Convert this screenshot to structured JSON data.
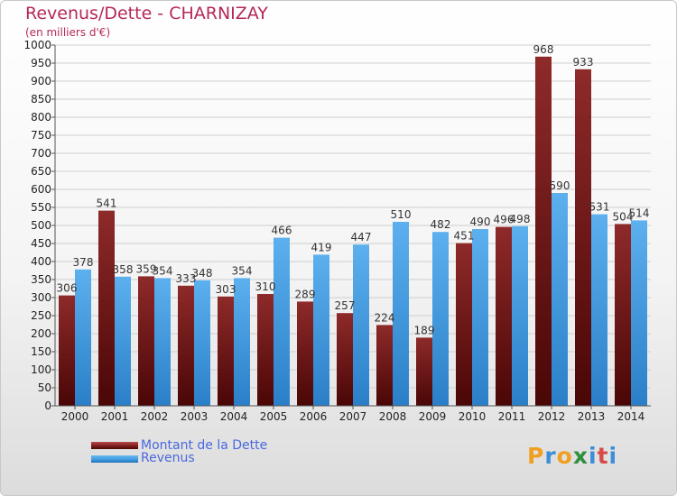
{
  "header": {
    "title": "Revenus/Dette - CHARNIZAY",
    "subtitle": "(en milliers d'€)"
  },
  "legend": {
    "debt_label": "Montant de la Dette",
    "revenue_label": "Revenus"
  },
  "logo": {
    "text": "Proxiti"
  },
  "colors": {
    "debt": "#7a1a1a",
    "revenue": "#3d9ae0",
    "title": "#b5285a",
    "legend_text": "#4a68e0"
  },
  "chart_data": {
    "type": "bar",
    "title": "Revenus/Dette - CHARNIZAY",
    "subtitle": "(en milliers d'€)",
    "categories": [
      "2000",
      "2001",
      "2002",
      "2003",
      "2004",
      "2005",
      "2006",
      "2007",
      "2008",
      "2009",
      "2010",
      "2011",
      "2012",
      "2013",
      "2014"
    ],
    "series": [
      {
        "name": "Montant de la Dette",
        "values": [
          306,
          541,
          359,
          333,
          303,
          310,
          289,
          257,
          224,
          189,
          451,
          496,
          968,
          933,
          504
        ],
        "labels": [
          "306",
          "541",
          "359",
          "333",
          "303",
          "310",
          "289",
          "257",
          "224",
          "189",
          "451",
          "496",
          "968",
          "933",
          "504"
        ]
      },
      {
        "name": "Revenus",
        "values": [
          378,
          358,
          354,
          348,
          354,
          466,
          419,
          447,
          510,
          482,
          490,
          498,
          590,
          531,
          514
        ],
        "labels": [
          "378",
          "358",
          "354",
          "348",
          "354",
          "466",
          "419",
          "447",
          "510",
          "482",
          "490",
          "498",
          "590",
          "531",
          "514"
        ]
      }
    ],
    "ylim": [
      0,
      1000
    ],
    "yticks": [
      0,
      50,
      100,
      150,
      200,
      250,
      300,
      350,
      400,
      450,
      500,
      550,
      600,
      650,
      700,
      750,
      800,
      850,
      900,
      950,
      1000
    ],
    "grid": true,
    "legend": "bottom-left"
  }
}
